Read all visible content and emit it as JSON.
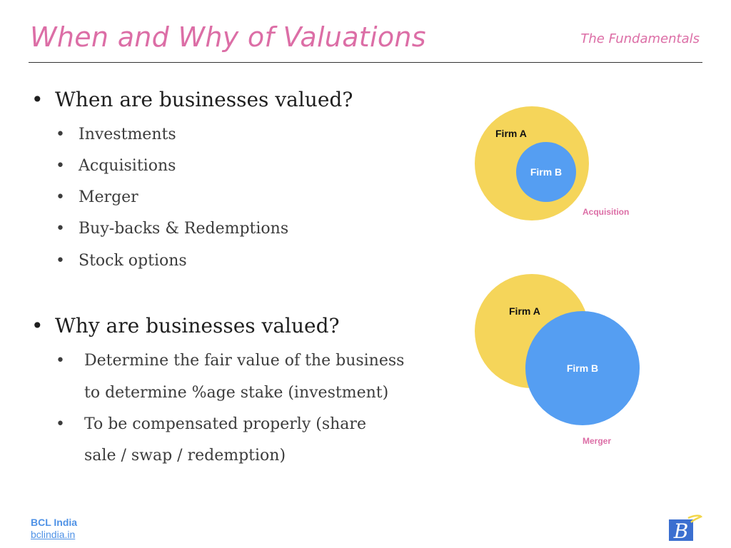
{
  "slide": {
    "title": "When and Why of Valuations",
    "subtitle": "The Fundamentals"
  },
  "when": {
    "heading": "When are businesses valued?",
    "items": [
      "Investments",
      "Acquisitions",
      "Merger",
      "Buy-backs & Redemptions",
      "Stock options"
    ]
  },
  "why": {
    "heading": "Why are businesses valued?",
    "items": [
      {
        "line1": "Determine the fair value of the business",
        "line2": "to determine %age stake (investment)"
      },
      {
        "line1": "To be compensated properly (share",
        "line2": "sale / swap / redemption)"
      }
    ]
  },
  "acquisition": {
    "outer_label": "Firm A",
    "inner_label": "Firm B",
    "caption": "Acquisition",
    "outer_color": "#f5d55a",
    "inner_color": "#559ef2"
  },
  "merger": {
    "left_label": "Firm A",
    "right_label": "Firm B",
    "caption": "Merger",
    "left_color": "#f5d55a",
    "right_color": "#559ef2"
  },
  "footer": {
    "org": "BCL India",
    "link": "bclindia.in"
  },
  "logo": {
    "glyph": "B",
    "accent_color": "#f2d64a",
    "brand_color": "#3b6fd0"
  }
}
